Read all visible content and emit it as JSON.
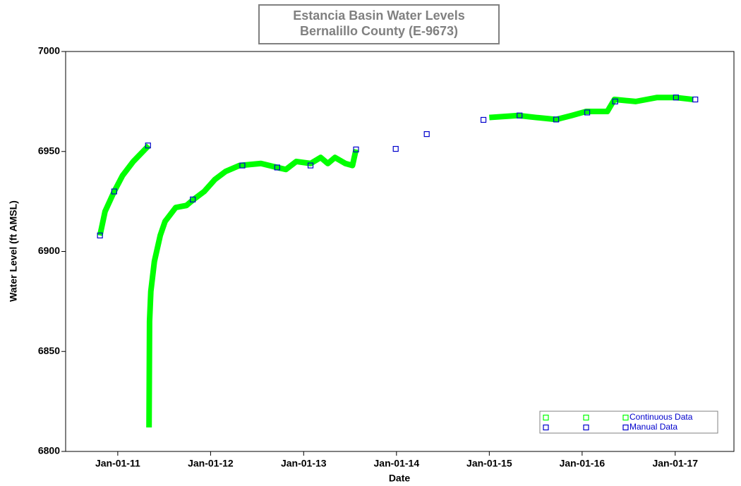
{
  "chart_data": {
    "type": "line",
    "title": "Estancia Basin Water Levels",
    "subtitle": "Bernalillo County (E-9673)",
    "x_label": "Date",
    "y_label": "Water Level (ft AMSL)",
    "xlim": [
      "2010-06-10",
      "2017-08-20"
    ],
    "xticks": [
      {
        "value": "2011-01-01",
        "label": "Jan-01-11"
      },
      {
        "value": "2012-01-01",
        "label": "Jan-01-12"
      },
      {
        "value": "2013-01-01",
        "label": "Jan-01-13"
      },
      {
        "value": "2014-01-01",
        "label": "Jan-01-14"
      },
      {
        "value": "2015-01-01",
        "label": "Jan-01-15"
      },
      {
        "value": "2016-01-01",
        "label": "Jan-01-16"
      },
      {
        "value": "2017-01-01",
        "label": "Jan-01-17"
      }
    ],
    "ylim": [
      6800,
      7000
    ],
    "yticks": [
      6800,
      6850,
      6900,
      6950,
      7000
    ],
    "legend": "bottom-right",
    "series": [
      {
        "name": "Continuous Data",
        "color": "#00ff00",
        "mode": "lines",
        "x": [
          "2010-10-23",
          "2010-11-12",
          "2010-12-18",
          "2011-01-20",
          "2011-03-03",
          "2011-05-03",
          "2011-05-04",
          "2011-05-04",
          "2011-05-06",
          "2011-05-11",
          "2011-05-25",
          "2011-06-17",
          "2011-07-06",
          "2011-08-17",
          "2011-09-28",
          "2011-10-26",
          "2011-12-07",
          "2012-01-18",
          "2012-02-29",
          "2012-04-24",
          "2012-07-17",
          "2012-09-19",
          "2012-10-23",
          "2012-12-03",
          "2013-01-28",
          "2013-03-09",
          "2013-04-06",
          "2013-05-04",
          "2013-06-14",
          "2013-07-12",
          "2013-07-26",
          "2014-04-15",
          "2015-01-01",
          "2015-04-25",
          "2015-07-04",
          "2015-09-21",
          "2015-11-21",
          "2016-01-16",
          "2016-04-09",
          "2016-05-07",
          "2016-07-30",
          "2016-10-22",
          "2017-01-01",
          "2017-03-13"
        ],
        "values": [
          6908,
          6920,
          6930,
          6938,
          6945,
          6953,
          null,
          6812,
          6865,
          6880,
          6895,
          6908,
          6915,
          6922,
          6923,
          6926,
          6930,
          6936,
          6940,
          6943,
          6944,
          6942,
          6941,
          6945,
          6944,
          6947,
          6944,
          6947,
          6944,
          6943,
          6951,
          null,
          6967,
          6968,
          6967,
          6966,
          6968,
          6970,
          6970,
          6976,
          6975,
          6977,
          6977,
          6976
        ]
      },
      {
        "name": "Manual Data",
        "color": "#0000cc",
        "mode": "markers",
        "x": [
          "2010-10-23",
          "2010-12-18",
          "2011-04-30",
          "2011-10-23",
          "2012-05-05",
          "2012-09-19",
          "2013-01-28",
          "2013-07-26",
          "2013-12-29",
          "2014-04-30",
          "2014-12-09",
          "2015-04-30",
          "2015-09-21",
          "2016-01-21",
          "2016-05-10",
          "2017-01-04",
          "2017-03-21"
        ],
        "values": [
          6908,
          6930,
          6953,
          6926,
          6943,
          6942,
          6943,
          6951,
          6951.3,
          6958.7,
          6965.8,
          6968,
          6966,
          6969.5,
          6975,
          6977,
          6976
        ]
      }
    ]
  }
}
